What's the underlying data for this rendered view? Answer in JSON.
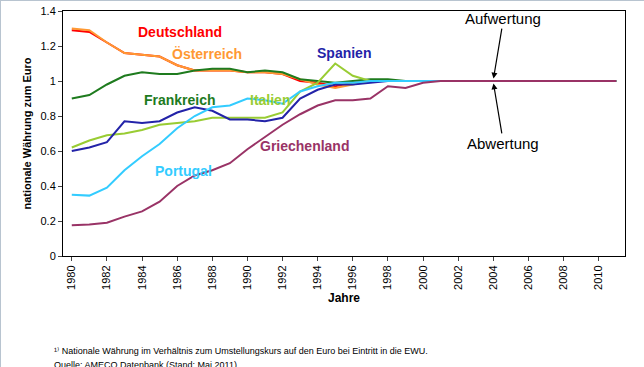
{
  "chart_data": {
    "type": "line",
    "x_label": "Jahre",
    "y_label": "nationale Währung zum Euro",
    "x": [
      1980,
      1981,
      1982,
      1983,
      1984,
      1985,
      1986,
      1987,
      1988,
      1989,
      1990,
      1991,
      1992,
      1993,
      1994,
      1995,
      1996,
      1997,
      1998,
      1999,
      2000,
      2001,
      2002,
      2003,
      2004,
      2005,
      2006,
      2007,
      2008,
      2009,
      2010,
      2011
    ],
    "series": [
      {
        "name": "Deutschland",
        "color": "#ff0000",
        "values": [
          1.29,
          1.28,
          1.22,
          1.16,
          1.15,
          1.14,
          1.09,
          1.06,
          1.06,
          1.06,
          1.05,
          1.05,
          1.04,
          1.0,
          0.99,
          0.97,
          0.99,
          1.0,
          1.0,
          1,
          1,
          1,
          1,
          1,
          1,
          1,
          1,
          1,
          1,
          1,
          1,
          1
        ]
      },
      {
        "name": "Österreich",
        "color": "#ff9933",
        "values": [
          1.3,
          1.29,
          1.22,
          1.16,
          1.15,
          1.14,
          1.09,
          1.06,
          1.06,
          1.06,
          1.05,
          1.05,
          1.04,
          1.01,
          0.98,
          0.96,
          0.98,
          1.0,
          1.0,
          1,
          1,
          1,
          1,
          1,
          1,
          1,
          1,
          1,
          1,
          1,
          1,
          1
        ]
      },
      {
        "name": "Frankreich",
        "color": "#1e7b1e",
        "values": [
          0.9,
          0.92,
          0.98,
          1.03,
          1.05,
          1.04,
          1.04,
          1.06,
          1.07,
          1.07,
          1.05,
          1.06,
          1.05,
          1.01,
          1.0,
          0.99,
          1.0,
          1.01,
          1.01,
          1,
          1,
          1,
          1,
          1,
          1,
          1,
          1,
          1,
          1,
          1,
          1,
          1
        ]
      },
      {
        "name": "Italien",
        "color": "#99cc33",
        "values": [
          0.62,
          0.66,
          0.69,
          0.7,
          0.72,
          0.75,
          0.76,
          0.77,
          0.79,
          0.79,
          0.79,
          0.79,
          0.82,
          0.94,
          0.99,
          1.1,
          1.03,
          1.0,
          1.0,
          1,
          1,
          1,
          1,
          1,
          1,
          1,
          1,
          1,
          1,
          1,
          1,
          1
        ]
      },
      {
        "name": "Spanien",
        "color": "#2323a8",
        "values": [
          0.6,
          0.62,
          0.65,
          0.77,
          0.76,
          0.77,
          0.82,
          0.85,
          0.83,
          0.78,
          0.78,
          0.77,
          0.79,
          0.9,
          0.95,
          0.98,
          0.98,
          0.99,
          1.0,
          1,
          1,
          1,
          1,
          1,
          1,
          1,
          1,
          1,
          1,
          1,
          1,
          1
        ]
      },
      {
        "name": "Portugal",
        "color": "#33ccff",
        "values": [
          0.35,
          0.345,
          0.39,
          0.49,
          0.57,
          0.64,
          0.73,
          0.8,
          0.85,
          0.86,
          0.9,
          0.89,
          0.87,
          0.94,
          0.97,
          0.99,
          0.99,
          1.0,
          1.0,
          1,
          1,
          1,
          1,
          1,
          1,
          1,
          1,
          1,
          1,
          1,
          1,
          1
        ]
      },
      {
        "name": "Griechenland",
        "color": "#993366",
        "values": [
          0.175,
          0.18,
          0.19,
          0.225,
          0.255,
          0.31,
          0.4,
          0.46,
          0.49,
          0.53,
          0.61,
          0.68,
          0.75,
          0.81,
          0.86,
          0.89,
          0.89,
          0.9,
          0.97,
          0.96,
          0.99,
          1.0,
          1,
          1,
          1,
          1,
          1,
          1,
          1,
          1,
          1,
          1
        ]
      }
    ],
    "xlim": [
      1979.5,
      2011.5
    ],
    "xticks": [
      1980,
      1982,
      1984,
      1986,
      1988,
      1990,
      1992,
      1994,
      1996,
      1998,
      2000,
      2002,
      2004,
      2006,
      2008,
      2010
    ],
    "ylim": [
      0,
      1.4
    ],
    "yticks": [
      0,
      0.2,
      0.4,
      0.6,
      0.8,
      1,
      1.2,
      1.4
    ],
    "grid": false,
    "annotations": [
      "Aufwertung",
      "Abwertung"
    ],
    "notes": [
      "¹⁾ Nationale Währung im Verhältnis zum Umstellungskurs auf den Euro bei Eintritt in die EWU.",
      "Quelle: AMECO Datenbank (Stand: Mai 2011)."
    ]
  }
}
